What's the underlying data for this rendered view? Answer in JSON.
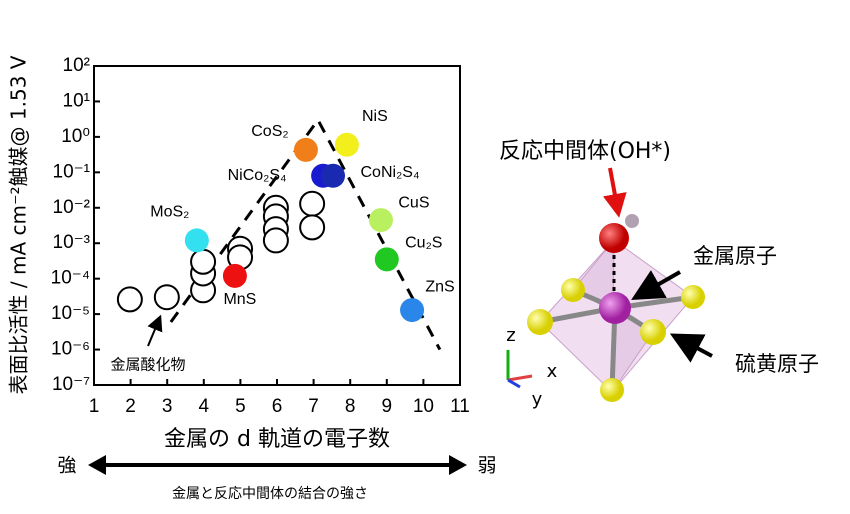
{
  "chart_data": {
    "type": "scatter",
    "ylabel": "表面比活性 / mA cm⁻²触媒@ 1.53 V",
    "xlabel": "金属の d 軌道の電子数",
    "xlim": [
      1,
      11
    ],
    "xticks": [
      1,
      2,
      3,
      4,
      5,
      6,
      7,
      8,
      9,
      10,
      11
    ],
    "ylim": [
      1e-07,
      100
    ],
    "ylog": true,
    "yticks": [
      {
        "value": 1e-07,
        "label": "10⁻⁷"
      },
      {
        "value": 1e-06,
        "label": "10⁻⁶"
      },
      {
        "value": 1e-05,
        "label": "10⁻⁵"
      },
      {
        "value": 0.0001,
        "label": "10⁻⁴"
      },
      {
        "value": 0.001,
        "label": "10⁻³"
      },
      {
        "value": 0.01,
        "label": "10⁻²"
      },
      {
        "value": 0.1,
        "label": "10⁻¹"
      },
      {
        "value": 1,
        "label": "10⁰"
      },
      {
        "value": 10,
        "label": "10¹"
      },
      {
        "value": 100,
        "label": "10²"
      }
    ],
    "series": [
      {
        "name": "金属酸化物",
        "color": "#ffffff",
        "x": [
          1.98,
          2.99,
          3.98,
          3.98,
          3.98,
          4.99,
          4.99,
          5.97,
          5.97,
          5.97,
          5.97,
          6.96,
          6.96
        ],
        "values": [
          2.6e-05,
          3e-05,
          4.7e-05,
          0.00014,
          0.0003,
          0.0007,
          0.0004,
          0.01,
          0.0057,
          0.0025,
          0.0012,
          0.013,
          0.0028
        ]
      },
      {
        "labels": [
          "MoS₂",
          "MnS",
          "CoS₂",
          "NiS",
          "NiCo₂S₄",
          "CoNi₂S₄",
          "CuS",
          "Cu₂S",
          "ZnS"
        ],
        "colors": [
          "#33e0f0",
          "#ee1111",
          "#f07f1a",
          "#f2ef1c",
          "#1a1ad0",
          "#1a2ab0",
          "#b8f060",
          "#22c822",
          "#2a86e8"
        ],
        "x": [
          3.81,
          4.85,
          6.79,
          7.91,
          7.26,
          7.53,
          8.84,
          9.0,
          9.69
        ],
        "values": [
          0.0012,
          0.00012,
          0.43,
          0.6,
          0.08,
          0.08,
          0.0045,
          0.00035,
          1.3e-05
        ]
      }
    ],
    "trend": {
      "x": [
        3.1,
        7.12,
        10.45
      ],
      "values": [
        6e-06,
        3,
        1e-06
      ]
    },
    "arrow_labels": {
      "left": "強",
      "right": "弱",
      "caption": "金属と反応中間体の結合の強さ"
    }
  },
  "diagram": {
    "intermediate": "反応中間体(OH*)",
    "metal": "金属原子",
    "sulfur": "硫黄原子",
    "axes": [
      "z",
      "x",
      "y"
    ]
  }
}
